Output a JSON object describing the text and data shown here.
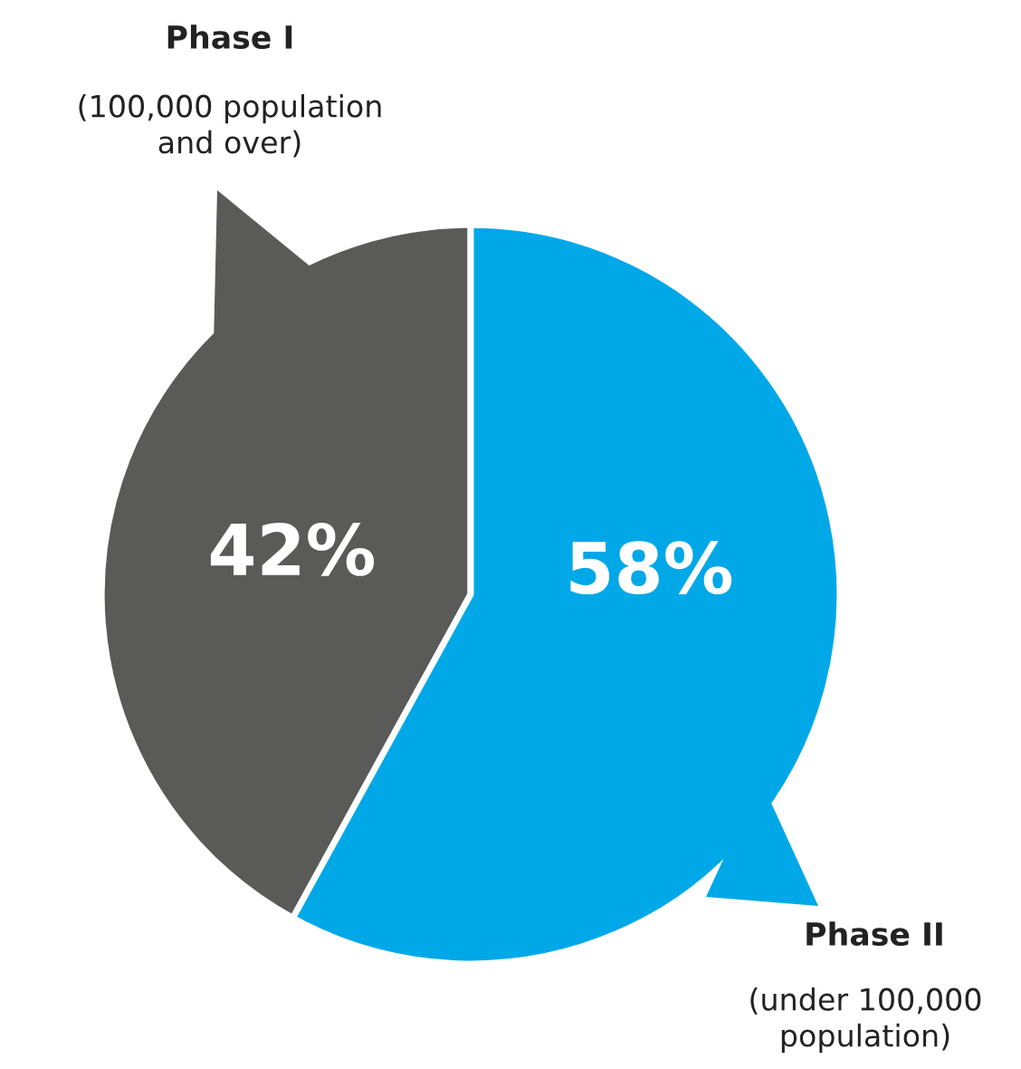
{
  "chart_data": {
    "type": "pie",
    "categories": [
      "Phase I",
      "Phase II"
    ],
    "values": [
      42,
      58
    ],
    "colors": [
      "#5a5b59",
      "#00a8e8"
    ],
    "value_labels": [
      "42%",
      "58%"
    ],
    "annotations": [
      "(100,000 population\nand over)",
      "(under 100,000\npopulation)"
    ]
  }
}
